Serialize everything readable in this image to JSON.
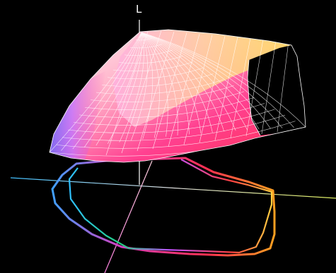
{
  "diagram": {
    "axis_l_label": "L",
    "colors": {
      "background": "#000000",
      "axis_l": "#ffffff",
      "axis_a": "#c8e070",
      "axis_b": "#e070c0",
      "mesh": "#ffffff",
      "gamut_fill_top": "#ffe070",
      "gamut_fill_bottom": "#ff3070"
    },
    "elements": [
      "l-axis",
      "a-axis",
      "b-axis",
      "gamut-solid",
      "gamut-wireframe",
      "gamut-projection-outer",
      "gamut-projection-inner"
    ]
  }
}
